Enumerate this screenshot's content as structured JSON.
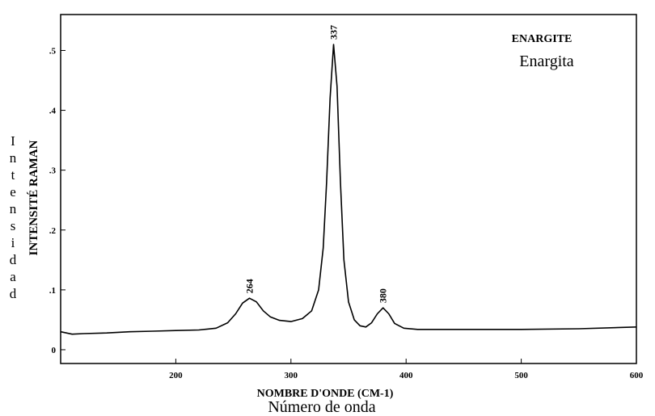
{
  "chart_data": {
    "type": "line",
    "title": "ENARGITE",
    "subtitle": "Enargita",
    "y_label": "INTENSITÉ RAMAN",
    "y_label_2": "Intensidad",
    "x_label": "NOMBRE D'ONDE (CM-1)",
    "x_label_2": "Número de onda",
    "color": "#000000",
    "x": [
      100,
      110,
      120,
      140,
      160,
      180,
      200,
      220,
      235,
      245,
      252,
      258,
      264,
      270,
      276,
      282,
      290,
      300,
      310,
      318,
      324,
      328,
      331,
      334,
      337,
      340,
      343,
      346,
      350,
      355,
      360,
      365,
      370,
      375,
      380,
      385,
      390,
      398,
      410,
      450,
      500,
      550,
      600
    ],
    "values": [
      0.03,
      0.026,
      0.027,
      0.028,
      0.03,
      0.031,
      0.032,
      0.033,
      0.036,
      0.045,
      0.06,
      0.078,
      0.086,
      0.08,
      0.065,
      0.055,
      0.049,
      0.047,
      0.052,
      0.065,
      0.1,
      0.17,
      0.28,
      0.42,
      0.51,
      0.44,
      0.28,
      0.15,
      0.08,
      0.05,
      0.04,
      0.038,
      0.045,
      0.06,
      0.07,
      0.06,
      0.044,
      0.036,
      0.034,
      0.034,
      0.034,
      0.035,
      0.038
    ],
    "annotations": [
      {
        "x": 264,
        "y": 0.086,
        "label": "264"
      },
      {
        "x": 337,
        "y": 0.51,
        "label": "337"
      },
      {
        "x": 380,
        "y": 0.07,
        "label": "380"
      }
    ],
    "xlim": [
      100,
      600
    ],
    "ylim": [
      -0.023,
      0.56
    ],
    "xticks": [
      200,
      300,
      400,
      500,
      600
    ],
    "yticks": [
      0,
      {
        "value": 0.1,
        "label": ".1"
      },
      {
        "value": 0.2,
        "label": ".2"
      },
      {
        "value": 0.3,
        "label": ".3"
      },
      {
        "value": 0.4,
        "label": ".4"
      },
      {
        "value": 0.5,
        "label": ".5"
      }
    ]
  }
}
